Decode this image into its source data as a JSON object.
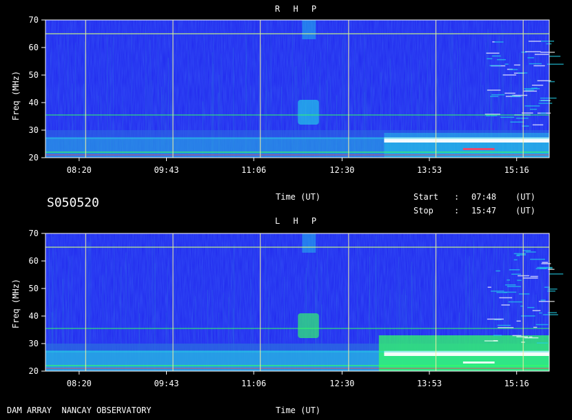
{
  "title_code": "S050520",
  "footer_label": "DAM ARRAY  NANCAY OBSERVATORY",
  "time_axis_label": "Time (UT)",
  "start_label": "Start",
  "start_sep": ":",
  "start_value": "07:48",
  "start_unit": "(UT)",
  "stop_label": "Stop",
  "stop_sep": ":",
  "stop_value": "15:47",
  "stop_unit": "(UT)",
  "chart_data": [
    {
      "type": "heatmap",
      "title": "R H P",
      "xlabel": "Time (UT)",
      "ylabel": "Freq (MHz)",
      "x_ticks": [
        "08:20",
        "09:43",
        "11:06",
        "12:30",
        "13:53",
        "15:16"
      ],
      "y_ticks": [
        "20",
        "30",
        "40",
        "50",
        "60",
        "70"
      ],
      "xlim": [
        "07:48",
        "15:47"
      ],
      "ylim": [
        20,
        70
      ],
      "grid": true,
      "colors": {
        "background": "#1e24ee",
        "low": "#2b6be0",
        "mid": "#24d0e8",
        "high": "#33ff66",
        "peak": "#ffffff"
      }
    },
    {
      "type": "heatmap",
      "title": "L H P",
      "xlabel": "Time (UT)",
      "ylabel": "Freq (MHz)",
      "x_ticks": [
        "08:20",
        "09:43",
        "11:06",
        "12:30",
        "13:53",
        "15:16"
      ],
      "y_ticks": [
        "20",
        "30",
        "40",
        "50",
        "60",
        "70"
      ],
      "xlim": [
        "07:48",
        "15:47"
      ],
      "ylim": [
        20,
        70
      ],
      "grid": true,
      "colors": {
        "background": "#1e24ee",
        "low": "#2b6be0",
        "mid": "#24d0e8",
        "high": "#33ff66",
        "peak": "#ffffff"
      }
    }
  ]
}
